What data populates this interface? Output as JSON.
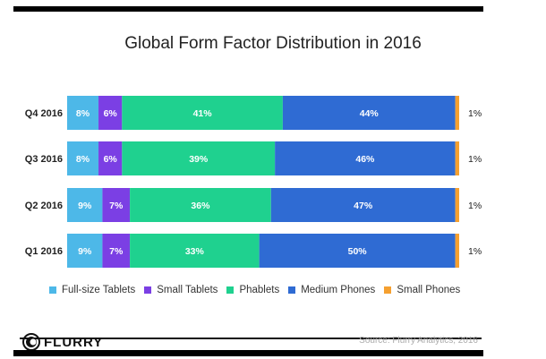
{
  "chart_data": {
    "type": "bar",
    "orientation": "horizontal",
    "stacked": true,
    "title": "Global Form Factor Distribution in 2016",
    "categories": [
      "Q4 2016",
      "Q3 2016",
      "Q2 2016",
      "Q1 2016"
    ],
    "series": [
      {
        "name": "Full-size Tablets",
        "color": "#4db8e8",
        "values": [
          8,
          8,
          9,
          9
        ]
      },
      {
        "name": "Small Tablets",
        "color": "#7b3fe4",
        "values": [
          6,
          6,
          7,
          7
        ]
      },
      {
        "name": "Phablets",
        "color": "#1fd18f",
        "values": [
          41,
          39,
          36,
          33
        ]
      },
      {
        "name": "Medium Phones",
        "color": "#2f6bd3",
        "values": [
          44,
          46,
          47,
          50
        ]
      },
      {
        "name": "Small Phones",
        "color": "#f5a030",
        "values": [
          1,
          1,
          1,
          1
        ]
      }
    ],
    "unit": "%",
    "xlim": [
      0,
      100
    ],
    "legend_position": "bottom",
    "grid": false
  },
  "footer": {
    "brand": "FLURRY",
    "source": "Source: Flurry Analytics, 2016"
  }
}
